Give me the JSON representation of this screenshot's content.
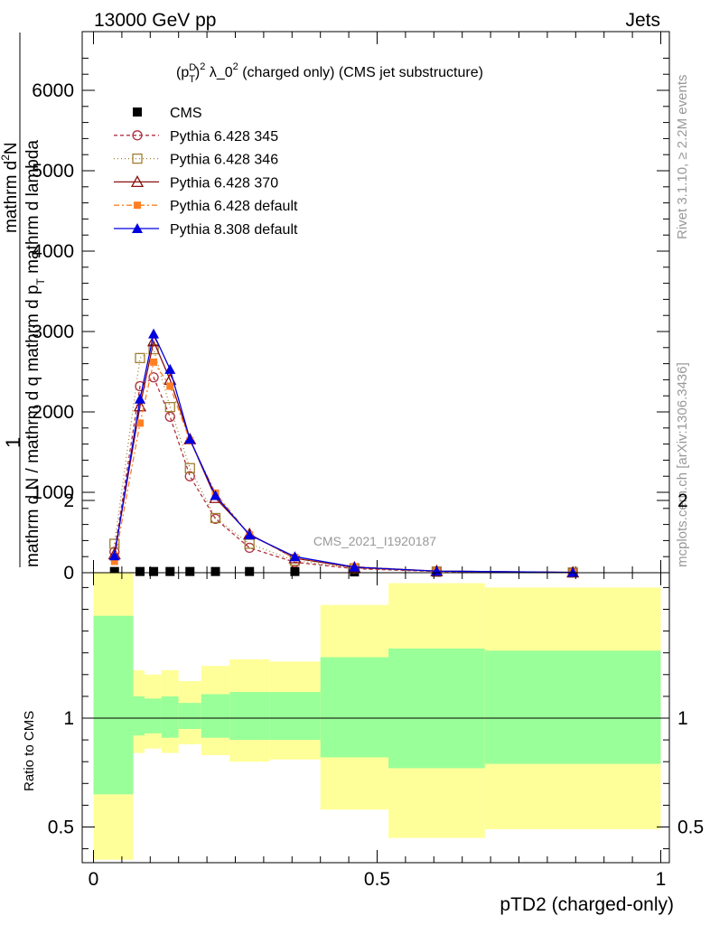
{
  "header": {
    "left": "13000 GeV pp",
    "right": "Jets"
  },
  "side_text": {
    "rivet": "Rivet 3.1.10, ≥ 2.2M events",
    "mcplots": "mcplots.cern.ch [arXiv:1306.3436]"
  },
  "colors": {
    "cms": "#000000",
    "p345": "#b03040",
    "p346": "#a08030",
    "p370": "#8b1010",
    "pdefault": "#ff7f24",
    "p8": "#0000e0",
    "band_yellow": "#ffff99",
    "band_green": "#99ff99"
  },
  "chart_data": [
    {
      "type": "line",
      "title": "(p_T^D)^2 λ_0^2 (charged only) (CMS jet substructure)",
      "title_parts": {
        "a": "(p",
        "sup1": "D",
        "sub1": "T",
        "b": ")",
        "sup2": "2",
        "c": " λ_0",
        "sup3": "2",
        "d": " (charged only) (CMS jet substructure)"
      },
      "ylabel_parts": {
        "one": "1",
        "num": "mathrm d",
        "num_sup": "2",
        "num_end": "N",
        "den": "mathrm d N / mathrm d q mathrm d p",
        "den_sub": "T",
        "den_end": " mathrm d lambda"
      },
      "watermark": "CMS_2021_I1920187",
      "xlim": [
        0,
        1
      ],
      "ylim": [
        0,
        6600
      ],
      "yticks": [
        0,
        1000,
        2000,
        3000,
        4000,
        5000,
        6000
      ],
      "ytick_labels": [
        "0",
        "1000",
        "2000",
        "3000",
        "4000",
        "5000",
        "6000"
      ],
      "legend_position": "top-left",
      "x": [
        0.037,
        0.082,
        0.106,
        0.135,
        0.17,
        0.215,
        0.275,
        0.355,
        0.46,
        0.605,
        0.845
      ],
      "series": [
        {
          "name": "CMS",
          "key": "cms",
          "marker": "square-filled",
          "values": [
            15,
            15,
            15,
            15,
            15,
            15,
            15,
            15,
            10,
            5,
            2
          ]
        },
        {
          "name": "Pythia 6.428 345",
          "key": "p345",
          "marker": "circle-open",
          "dash": "4,3",
          "values": [
            260,
            2320,
            2430,
            1940,
            1200,
            670,
            310,
            130,
            50,
            15,
            3
          ]
        },
        {
          "name": "Pythia 6.428 346",
          "key": "p346",
          "marker": "square-open",
          "dash": "1,3",
          "values": [
            360,
            2670,
            2780,
            2060,
            1300,
            680,
            360,
            150,
            55,
            15,
            3
          ]
        },
        {
          "name": "Pythia 6.428 370",
          "key": "p370",
          "marker": "triangle-open",
          "dash": "",
          "values": [
            230,
            2070,
            2880,
            2400,
            1660,
            930,
            480,
            180,
            65,
            20,
            4
          ]
        },
        {
          "name": "Pythia 6.428 default",
          "key": "pdefault",
          "marker": "square-filled-small",
          "dash": "6,3,2,3",
          "values": [
            140,
            1860,
            2620,
            2320,
            1640,
            990,
            470,
            190,
            75,
            20,
            4
          ]
        },
        {
          "name": "Pythia 8.308 default",
          "key": "p8",
          "marker": "triangle-filled",
          "dash": "",
          "values": [
            210,
            2160,
            2970,
            2530,
            1660,
            960,
            470,
            200,
            70,
            20,
            4
          ]
        }
      ]
    },
    {
      "type": "area",
      "ylabel": "Ratio to CMS",
      "xlabel": "pTD2 (charged-only)",
      "xlim": [
        0,
        1
      ],
      "ylim": [
        0.35,
        2.3
      ],
      "xticks": [
        0,
        0.5,
        1
      ],
      "xtick_labels": [
        "0",
        "0.5",
        "1"
      ],
      "yticks": [
        0.5,
        1,
        2
      ],
      "ytick_labels": [
        "0.5",
        "1",
        "2"
      ],
      "bins": [
        {
          "lo": 0.0,
          "hi": 0.07,
          "y_lo": 0.35,
          "y_hi": 1.84,
          "g_lo": 0.65,
          "g_hi": 1.47
        },
        {
          "lo": 0.07,
          "hi": 0.09,
          "y_lo": 0.84,
          "y_hi": 1.22,
          "g_lo": 0.92,
          "g_hi": 1.1
        },
        {
          "lo": 0.09,
          "hi": 0.12,
          "y_lo": 0.86,
          "y_hi": 1.2,
          "g_lo": 0.93,
          "g_hi": 1.09
        },
        {
          "lo": 0.12,
          "hi": 0.15,
          "y_lo": 0.84,
          "y_hi": 1.22,
          "g_lo": 0.91,
          "g_hi": 1.1
        },
        {
          "lo": 0.15,
          "hi": 0.19,
          "y_lo": 0.88,
          "y_hi": 1.17,
          "g_lo": 0.95,
          "g_hi": 1.07
        },
        {
          "lo": 0.19,
          "hi": 0.24,
          "y_lo": 0.83,
          "y_hi": 1.24,
          "g_lo": 0.91,
          "g_hi": 1.11
        },
        {
          "lo": 0.24,
          "hi": 0.31,
          "y_lo": 0.8,
          "y_hi": 1.27,
          "g_lo": 0.9,
          "g_hi": 1.12
        },
        {
          "lo": 0.31,
          "hi": 0.4,
          "y_lo": 0.81,
          "y_hi": 1.26,
          "g_lo": 0.9,
          "g_hi": 1.12
        },
        {
          "lo": 0.4,
          "hi": 0.52,
          "y_lo": 0.58,
          "y_hi": 1.52,
          "g_lo": 0.82,
          "g_hi": 1.28
        },
        {
          "lo": 0.52,
          "hi": 0.69,
          "y_lo": 0.45,
          "y_hi": 1.62,
          "g_lo": 0.77,
          "g_hi": 1.32
        },
        {
          "lo": 0.69,
          "hi": 1.0,
          "y_lo": 0.49,
          "y_hi": 1.6,
          "g_lo": 0.79,
          "g_hi": 1.31
        }
      ]
    }
  ]
}
